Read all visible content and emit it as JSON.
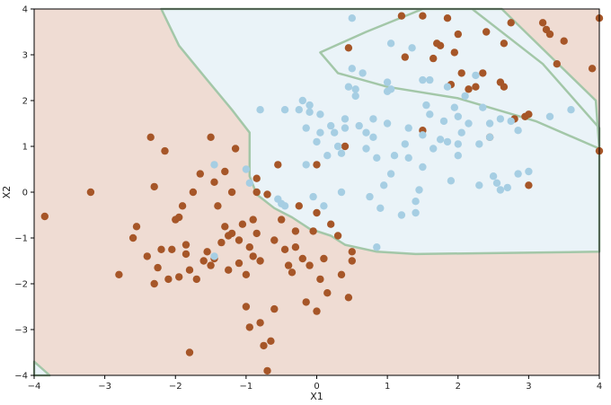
{
  "chart_data": {
    "type": "scatter",
    "title": "",
    "xlabel": "X1",
    "ylabel": "X2",
    "xlim": [
      -4,
      4
    ],
    "ylim": [
      -4,
      4
    ],
    "xticks": [
      "−4",
      "−3",
      "−2",
      "−1",
      "0",
      "1",
      "2",
      "3",
      "4"
    ],
    "yticks": [
      "−4",
      "−3",
      "−2",
      "−1",
      "0",
      "1",
      "2",
      "3",
      "4"
    ],
    "xtick_values": [
      -4,
      -3,
      -2,
      -1,
      0,
      1,
      2,
      3,
      4
    ],
    "ytick_values": [
      -4,
      -3,
      -2,
      -1,
      0,
      1,
      2,
      3,
      4
    ],
    "grid": false,
    "colors": {
      "region_a": "#efdcd3",
      "region_b": "#eaf3f8",
      "class_a": "#a65628",
      "class_b": "#a6cee3",
      "boundary": "#a3c7a8"
    },
    "decision_regions": [
      {
        "class": "b",
        "polygon": [
          [
            -2.2,
            4
          ],
          [
            2.62,
            4
          ],
          [
            3.95,
            2.0
          ],
          [
            4,
            0.95
          ],
          [
            3.1,
            1.55
          ],
          [
            2.0,
            2.05
          ],
          [
            1.0,
            2.3
          ],
          [
            0.3,
            2.6
          ],
          [
            0.05,
            3.05
          ],
          [
            0.7,
            3.5
          ],
          [
            1.5,
            4
          ],
          [
            2.2,
            4
          ],
          [
            3.2,
            2.8
          ],
          [
            4,
            1.4
          ],
          [
            4,
            -1.3
          ],
          [
            1.4,
            -1.35
          ],
          [
            0.85,
            -1.3
          ],
          [
            0.4,
            -1.15
          ],
          [
            0.2,
            -0.95
          ],
          [
            -0.1,
            -0.8
          ],
          [
            -0.35,
            -0.55
          ],
          [
            -0.6,
            -0.35
          ],
          [
            -0.85,
            -0.05
          ],
          [
            -0.95,
            0.35
          ],
          [
            -0.95,
            1.3
          ],
          [
            -1.2,
            1.8
          ],
          [
            -1.55,
            2.45
          ],
          [
            -1.95,
            3.2
          ],
          [
            -2.2,
            4
          ]
        ]
      },
      {
        "class": "b",
        "polygon": [
          [
            -4,
            -3.7
          ],
          [
            -3.78,
            -4
          ],
          [
            -4,
            -4
          ]
        ]
      }
    ],
    "series": [
      {
        "class": "a",
        "points": [
          [
            -3.85,
            -0.53
          ],
          [
            -3.2,
            0.0
          ],
          [
            -2.8,
            -1.8
          ],
          [
            -2.6,
            -1.0
          ],
          [
            -2.55,
            -0.75
          ],
          [
            -2.4,
            -1.4
          ],
          [
            -2.35,
            1.2
          ],
          [
            -2.3,
            0.12
          ],
          [
            -2.3,
            -2.0
          ],
          [
            -2.25,
            -1.65
          ],
          [
            -2.2,
            -1.25
          ],
          [
            -2.15,
            0.9
          ],
          [
            -2.1,
            -1.9
          ],
          [
            -2.05,
            -1.25
          ],
          [
            -2.0,
            -0.6
          ],
          [
            -1.95,
            -0.55
          ],
          [
            -1.95,
            -1.85
          ],
          [
            -1.9,
            -0.3
          ],
          [
            -1.85,
            -1.35
          ],
          [
            -1.85,
            -1.15
          ],
          [
            -1.8,
            -1.7
          ],
          [
            -1.8,
            -3.5
          ],
          [
            -1.75,
            0.0
          ],
          [
            -1.7,
            -1.9
          ],
          [
            -1.65,
            0.4
          ],
          [
            -1.6,
            -1.5
          ],
          [
            -1.55,
            -1.3
          ],
          [
            -1.5,
            -1.6
          ],
          [
            -1.5,
            1.2
          ],
          [
            -1.45,
            0.22
          ],
          [
            -1.45,
            -1.45
          ],
          [
            -1.4,
            -0.3
          ],
          [
            -1.35,
            -1.1
          ],
          [
            -1.3,
            -0.75
          ],
          [
            -1.3,
            0.45
          ],
          [
            -1.25,
            -0.95
          ],
          [
            -1.25,
            -1.7
          ],
          [
            -1.2,
            0.0
          ],
          [
            -1.2,
            -0.9
          ],
          [
            -1.15,
            0.95
          ],
          [
            -1.1,
            -1.05
          ],
          [
            -1.1,
            -1.55
          ],
          [
            -1.05,
            -0.7
          ],
          [
            -1.0,
            -1.8
          ],
          [
            -1.0,
            -2.5
          ],
          [
            -0.95,
            -1.2
          ],
          [
            -0.95,
            -2.95
          ],
          [
            -0.9,
            -0.6
          ],
          [
            -0.9,
            -1.4
          ],
          [
            -0.85,
            0.3
          ],
          [
            -0.85,
            0.0
          ],
          [
            -0.85,
            -0.9
          ],
          [
            -0.8,
            -1.5
          ],
          [
            -0.8,
            -2.85
          ],
          [
            -0.75,
            -3.35
          ],
          [
            -0.7,
            -3.9
          ],
          [
            -0.7,
            -0.05
          ],
          [
            -0.65,
            -3.25
          ],
          [
            -0.6,
            -1.05
          ],
          [
            -0.6,
            -2.55
          ],
          [
            -0.55,
            0.6
          ],
          [
            -0.5,
            -0.6
          ],
          [
            -0.45,
            -1.25
          ],
          [
            -0.4,
            -1.6
          ],
          [
            -0.35,
            -1.75
          ],
          [
            -0.3,
            -0.85
          ],
          [
            -0.3,
            -1.2
          ],
          [
            -0.25,
            -0.3
          ],
          [
            -0.2,
            -1.45
          ],
          [
            -0.15,
            -2.4
          ],
          [
            -0.1,
            -1.6
          ],
          [
            -0.05,
            -0.85
          ],
          [
            0.0,
            0.6
          ],
          [
            0.0,
            -0.45
          ],
          [
            0.0,
            -2.6
          ],
          [
            0.05,
            -1.9
          ],
          [
            0.1,
            -1.45
          ],
          [
            0.15,
            -2.2
          ],
          [
            0.2,
            -0.7
          ],
          [
            0.3,
            -0.95
          ],
          [
            0.35,
            -1.8
          ],
          [
            0.4,
            1.0
          ],
          [
            0.45,
            3.15
          ],
          [
            0.45,
            -2.3
          ],
          [
            0.5,
            -1.5
          ],
          [
            0.5,
            -1.3
          ],
          [
            1.2,
            3.85
          ],
          [
            1.25,
            2.95
          ],
          [
            1.5,
            3.85
          ],
          [
            1.5,
            1.35
          ],
          [
            1.65,
            2.92
          ],
          [
            1.7,
            3.25
          ],
          [
            1.75,
            3.2
          ],
          [
            1.85,
            3.8
          ],
          [
            1.9,
            2.35
          ],
          [
            1.95,
            3.05
          ],
          [
            2.0,
            3.45
          ],
          [
            2.05,
            2.6
          ],
          [
            2.15,
            2.25
          ],
          [
            2.25,
            2.3
          ],
          [
            2.35,
            2.6
          ],
          [
            2.4,
            3.5
          ],
          [
            2.45,
            1.2
          ],
          [
            2.6,
            2.4
          ],
          [
            2.65,
            2.3
          ],
          [
            2.65,
            3.25
          ],
          [
            2.75,
            3.7
          ],
          [
            2.8,
            1.6
          ],
          [
            2.95,
            1.65
          ],
          [
            3.0,
            1.7
          ],
          [
            3.0,
            0.15
          ],
          [
            3.2,
            3.7
          ],
          [
            3.25,
            3.55
          ],
          [
            3.3,
            3.45
          ],
          [
            3.4,
            2.8
          ],
          [
            3.5,
            3.3
          ],
          [
            3.9,
            2.7
          ],
          [
            4.0,
            3.8
          ],
          [
            4.0,
            0.9
          ]
        ]
      },
      {
        "class": "b",
        "points": [
          [
            -1.45,
            0.6
          ],
          [
            -1.45,
            -1.4
          ],
          [
            -1.0,
            0.5
          ],
          [
            -0.95,
            0.2
          ],
          [
            -0.8,
            1.8
          ],
          [
            -0.55,
            -0.15
          ],
          [
            -0.5,
            -0.25
          ],
          [
            -0.45,
            -0.3
          ],
          [
            -0.45,
            1.8
          ],
          [
            -0.25,
            1.8
          ],
          [
            -0.2,
            2.0
          ],
          [
            -0.15,
            1.4
          ],
          [
            -0.15,
            0.6
          ],
          [
            -0.1,
            1.9
          ],
          [
            -0.1,
            1.75
          ],
          [
            -0.05,
            -0.1
          ],
          [
            0.0,
            1.1
          ],
          [
            0.05,
            1.3
          ],
          [
            0.05,
            1.7
          ],
          [
            0.1,
            -0.3
          ],
          [
            0.15,
            0.8
          ],
          [
            0.2,
            1.45
          ],
          [
            0.25,
            1.3
          ],
          [
            0.3,
            1.0
          ],
          [
            0.35,
            0.0
          ],
          [
            0.35,
            0.85
          ],
          [
            0.4,
            1.6
          ],
          [
            0.4,
            1.4
          ],
          [
            0.45,
            2.3
          ],
          [
            0.5,
            3.8
          ],
          [
            0.5,
            2.7
          ],
          [
            0.55,
            2.25
          ],
          [
            0.55,
            2.1
          ],
          [
            0.6,
            1.45
          ],
          [
            0.65,
            2.6
          ],
          [
            0.7,
            1.3
          ],
          [
            0.7,
            0.95
          ],
          [
            0.75,
            -0.1
          ],
          [
            0.8,
            1.6
          ],
          [
            0.8,
            1.2
          ],
          [
            0.85,
            0.75
          ],
          [
            0.9,
            -0.35
          ],
          [
            0.95,
            0.15
          ],
          [
            1.0,
            2.4
          ],
          [
            1.0,
            2.2
          ],
          [
            1.0,
            1.5
          ],
          [
            1.05,
            3.25
          ],
          [
            1.05,
            2.25
          ],
          [
            1.05,
            0.4
          ],
          [
            1.1,
            0.8
          ],
          [
            1.2,
            -0.5
          ],
          [
            1.25,
            1.05
          ],
          [
            1.3,
            1.4
          ],
          [
            1.3,
            0.75
          ],
          [
            1.35,
            3.15
          ],
          [
            1.4,
            -0.2
          ],
          [
            1.4,
            -0.45
          ],
          [
            1.45,
            0.05
          ],
          [
            1.5,
            2.45
          ],
          [
            1.5,
            1.25
          ],
          [
            1.5,
            0.55
          ],
          [
            1.55,
            1.9
          ],
          [
            1.6,
            2.45
          ],
          [
            1.6,
            1.7
          ],
          [
            1.65,
            0.95
          ],
          [
            1.75,
            1.15
          ],
          [
            1.8,
            1.55
          ],
          [
            1.85,
            2.3
          ],
          [
            1.85,
            1.1
          ],
          [
            1.9,
            0.25
          ],
          [
            1.95,
            1.85
          ],
          [
            2.0,
            1.65
          ],
          [
            2.0,
            1.05
          ],
          [
            2.0,
            0.8
          ],
          [
            2.05,
            1.3
          ],
          [
            2.1,
            2.1
          ],
          [
            2.15,
            1.5
          ],
          [
            2.25,
            2.55
          ],
          [
            2.3,
            1.05
          ],
          [
            2.3,
            0.15
          ],
          [
            2.35,
            1.85
          ],
          [
            2.45,
            1.5
          ],
          [
            2.45,
            1.2
          ],
          [
            2.5,
            0.35
          ],
          [
            2.55,
            0.2
          ],
          [
            2.6,
            1.6
          ],
          [
            2.6,
            0.05
          ],
          [
            2.7,
            0.1
          ],
          [
            2.75,
            1.55
          ],
          [
            2.85,
            1.35
          ],
          [
            2.85,
            0.4
          ],
          [
            3.0,
            0.45
          ],
          [
            3.3,
            1.65
          ],
          [
            3.6,
            1.8
          ],
          [
            0.85,
            -1.2
          ]
        ]
      }
    ]
  }
}
